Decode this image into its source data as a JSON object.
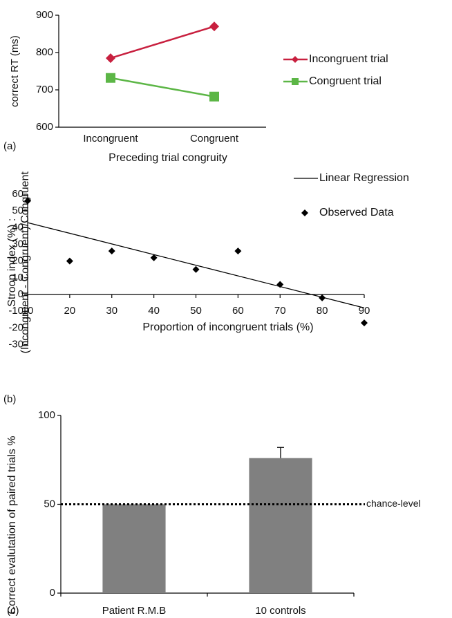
{
  "chart_data": [
    {
      "type": "line",
      "panel_label": "(a)",
      "y_label": "correct RT (ms)",
      "x_label": "Preceding trial congruity",
      "categories": [
        "Incongruent",
        "Congruent"
      ],
      "series": [
        {
          "name": "Incongruent trial",
          "color": "#c8203f",
          "marker": "diamond",
          "values": [
            785,
            870
          ]
        },
        {
          "name": "Congruent trial",
          "color": "#5cb646",
          "marker": "square",
          "values": [
            732,
            682
          ]
        }
      ],
      "ylim": [
        600,
        900
      ],
      "yticks": [
        600,
        700,
        800,
        900
      ]
    },
    {
      "type": "scatter",
      "panel_label": "(b)",
      "y_label": [
        "Stroop index (%) :",
        "(Incongruent - Congruent)/Congruent"
      ],
      "x_label": "Proportion of incongruent trials (%)",
      "series": [
        {
          "name": "Linear Regression",
          "color": "#000000",
          "style": "line",
          "x": [
            10,
            90
          ],
          "values": [
            43,
            -8
          ]
        },
        {
          "name": "Observed Data",
          "color": "#000000",
          "style": "marker",
          "x": [
            10,
            20,
            30,
            40,
            50,
            60,
            70,
            80,
            90
          ],
          "values": [
            56,
            20,
            26,
            22,
            15,
            26,
            6,
            -2,
            -17
          ]
        }
      ],
      "xlim": [
        10,
        90
      ],
      "xticks": [
        10,
        20,
        30,
        40,
        50,
        60,
        70,
        80,
        90
      ],
      "ylim": [
        -30,
        60
      ],
      "yticks": [
        -30,
        -20,
        -10,
        0,
        10,
        20,
        30,
        40,
        50,
        60
      ]
    },
    {
      "type": "bar",
      "panel_label": "(c)",
      "y_label": "Correct evalutation of paired trials %",
      "categories": [
        "Patient  R.M.B",
        "10 controls"
      ],
      "values": [
        50,
        76
      ],
      "errors": [
        null,
        6
      ],
      "color": "#808080",
      "reference_line": {
        "value": 50,
        "label": "chance-level"
      },
      "ylim": [
        0,
        100
      ],
      "yticks": [
        0,
        50,
        100
      ]
    }
  ]
}
